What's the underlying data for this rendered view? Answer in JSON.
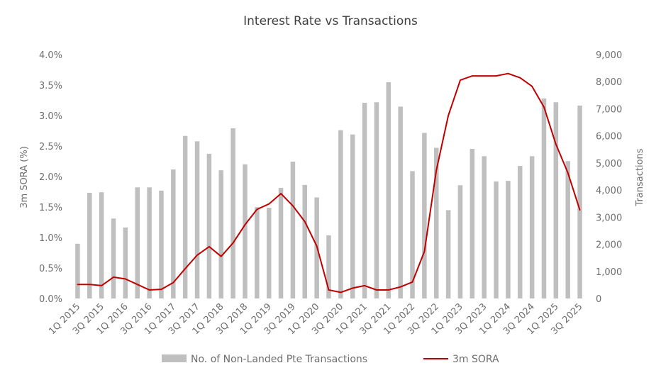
{
  "chart_data": {
    "type": "bar",
    "title": "Interest Rate vs Transactions",
    "ylabel_left": "3m SORA (%)",
    "ylabel_right": "Transactions",
    "xlabel": "",
    "left_axis": {
      "min": 0,
      "max": 4.0,
      "step": 0.5,
      "ticks": [
        "0.0%",
        "0.5%",
        "1.0%",
        "1.5%",
        "2.0%",
        "2.5%",
        "3.0%",
        "3.5%",
        "4.0%"
      ]
    },
    "right_axis": {
      "min": 0,
      "max": 9000,
      "step": 1000,
      "ticks": [
        "0",
        "1,000",
        "2,000",
        "3,000",
        "4,000",
        "5,000",
        "6,000",
        "7,000",
        "8,000",
        "9,000"
      ]
    },
    "categories": [
      "1Q 2015",
      "2Q 2015",
      "3Q 2015",
      "4Q 2015",
      "1Q 2016",
      "2Q 2016",
      "3Q 2016",
      "4Q 2016",
      "1Q 2017",
      "2Q 2017",
      "3Q 2017",
      "4Q 2017",
      "1Q 2018",
      "2Q 2018",
      "3Q 2018",
      "4Q 2018",
      "1Q 2019",
      "2Q 2019",
      "3Q 2019",
      "4Q 2019",
      "1Q 2020",
      "2Q 2020",
      "3Q 2020",
      "4Q 2020",
      "1Q 2021",
      "2Q 2021",
      "3Q 2021",
      "4Q 2021",
      "1Q 2022",
      "2Q 2022",
      "3Q 2022",
      "4Q 2022",
      "1Q 2023",
      "2Q 2023",
      "3Q 2023",
      "4Q 2023",
      "1Q 2024",
      "2Q 2024",
      "3Q 2024",
      "4Q 2024",
      "1Q 2025",
      "2Q 2025",
      "3Q 2025"
    ],
    "tick_labels": [
      "1Q 2015",
      "3Q 2015",
      "1Q 2016",
      "3Q 2016",
      "1Q 2017",
      "3Q 2017",
      "1Q 2018",
      "3Q 2018",
      "1Q 2019",
      "3Q 2019",
      "1Q 2020",
      "3Q 2020",
      "1Q 2021",
      "3Q 2021",
      "1Q 2022",
      "3Q 2022",
      "1Q 2023",
      "3Q 2023",
      "1Q 2024",
      "3Q 2024",
      "1Q 2025",
      "3Q 2025"
    ],
    "series": [
      {
        "name": "No. of Non-Landed Pte Transactions",
        "type": "bar",
        "axis": "right",
        "color": "#bfbfbf",
        "values": [
          2020,
          3900,
          3920,
          2950,
          2620,
          4100,
          4100,
          3980,
          4760,
          6000,
          5800,
          5340,
          4730,
          6280,
          4950,
          3370,
          3350,
          4080,
          5050,
          4190,
          3730,
          2330,
          6210,
          6050,
          7220,
          7240,
          7980,
          7080,
          4700,
          6110,
          5560,
          3260,
          4180,
          5520,
          5250,
          4320,
          4340,
          4890,
          5250,
          7380,
          7240,
          5070,
          7120
        ]
      },
      {
        "name": "3m SORA",
        "type": "line",
        "axis": "left",
        "color": "#c00000",
        "values": [
          0.23,
          0.23,
          0.21,
          0.35,
          0.32,
          0.23,
          0.14,
          0.15,
          0.26,
          0.49,
          0.71,
          0.85,
          0.69,
          0.91,
          1.21,
          1.46,
          1.55,
          1.72,
          1.52,
          1.26,
          0.86,
          0.14,
          0.1,
          0.17,
          0.21,
          0.14,
          0.14,
          0.19,
          0.27,
          0.77,
          2.1,
          3.0,
          3.58,
          3.65,
          3.65,
          3.65,
          3.69,
          3.62,
          3.48,
          3.14,
          2.53,
          2.06,
          1.45
        ]
      }
    ],
    "grid": false,
    "legend_position": "bottom",
    "legend": [
      "No. of Non-Landed Pte Transactions",
      "3m SORA"
    ]
  }
}
